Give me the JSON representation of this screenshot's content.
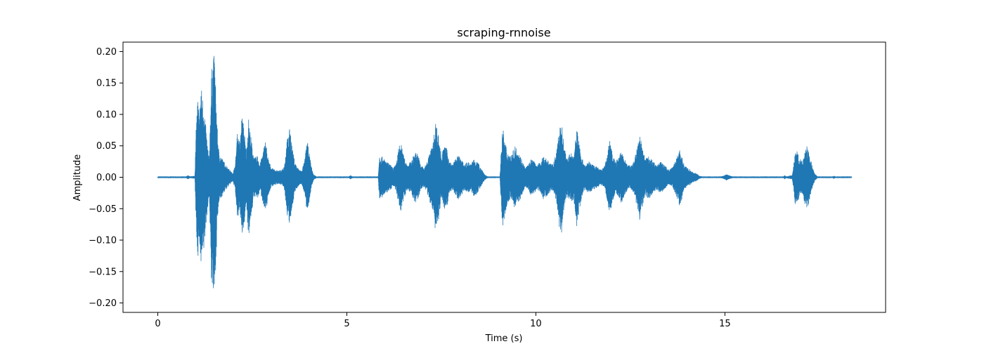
{
  "chart_data": {
    "type": "line",
    "title": "scraping-rnnoise",
    "xlabel": "Time (s)",
    "ylabel": "Amplitude",
    "xlim": [
      -0.92,
      19.25
    ],
    "ylim": [
      -0.215,
      0.215
    ],
    "xticks": [
      0,
      5,
      10,
      15
    ],
    "xtick_labels": [
      "0",
      "5",
      "10",
      "15"
    ],
    "yticks": [
      -0.2,
      -0.15,
      -0.1,
      -0.05,
      0.0,
      0.05,
      0.1,
      0.15,
      0.2
    ],
    "ytick_labels": [
      "−0.20",
      "−0.15",
      "−0.10",
      "−0.05",
      "0.00",
      "0.05",
      "0.10",
      "0.15",
      "0.20"
    ],
    "grid": false,
    "duration": 18.35,
    "series": [
      {
        "color": "#1f77b4",
        "envelope": [
          [
            0.0,
            0.001
          ],
          [
            0.75,
            0.001
          ],
          [
            0.8,
            0.003
          ],
          [
            0.85,
            0.001
          ],
          [
            0.98,
            0.002
          ],
          [
            1.02,
            0.09
          ],
          [
            1.06,
            0.13
          ],
          [
            1.1,
            0.095
          ],
          [
            1.14,
            0.15
          ],
          [
            1.18,
            0.13
          ],
          [
            1.22,
            0.12
          ],
          [
            1.27,
            0.08
          ],
          [
            1.32,
            0.05
          ],
          [
            1.36,
            0.03
          ],
          [
            1.42,
            0.17
          ],
          [
            1.46,
            0.19
          ],
          [
            1.5,
            0.196
          ],
          [
            1.54,
            0.13
          ],
          [
            1.58,
            0.07
          ],
          [
            1.62,
            0.04
          ],
          [
            1.7,
            0.03
          ],
          [
            1.8,
            0.02
          ],
          [
            1.9,
            0.012
          ],
          [
            1.98,
            0.006
          ],
          [
            2.05,
            0.02
          ],
          [
            2.1,
            0.07
          ],
          [
            2.18,
            0.055
          ],
          [
            2.22,
            0.1
          ],
          [
            2.28,
            0.08
          ],
          [
            2.34,
            0.04
          ],
          [
            2.4,
            0.095
          ],
          [
            2.45,
            0.07
          ],
          [
            2.55,
            0.03
          ],
          [
            2.65,
            0.035
          ],
          [
            2.7,
            0.02
          ],
          [
            2.78,
            0.04
          ],
          [
            2.85,
            0.06
          ],
          [
            2.92,
            0.03
          ],
          [
            3.0,
            0.015
          ],
          [
            3.1,
            0.012
          ],
          [
            3.2,
            0.01
          ],
          [
            3.28,
            0.012
          ],
          [
            3.35,
            0.02
          ],
          [
            3.42,
            0.06
          ],
          [
            3.5,
            0.08
          ],
          [
            3.55,
            0.05
          ],
          [
            3.62,
            0.025
          ],
          [
            3.7,
            0.015
          ],
          [
            3.8,
            0.01
          ],
          [
            3.88,
            0.025
          ],
          [
            3.95,
            0.06
          ],
          [
            4.0,
            0.04
          ],
          [
            4.06,
            0.018
          ],
          [
            4.12,
            0.004
          ],
          [
            4.2,
            0.001
          ],
          [
            5.05,
            0.001
          ],
          [
            5.1,
            0.003
          ],
          [
            5.15,
            0.001
          ],
          [
            5.83,
            0.001
          ],
          [
            5.86,
            0.035
          ],
          [
            5.95,
            0.032
          ],
          [
            6.05,
            0.025
          ],
          [
            6.15,
            0.02
          ],
          [
            6.22,
            0.015
          ],
          [
            6.3,
            0.02
          ],
          [
            6.38,
            0.05
          ],
          [
            6.43,
            0.055
          ],
          [
            6.5,
            0.035
          ],
          [
            6.6,
            0.02
          ],
          [
            6.7,
            0.025
          ],
          [
            6.8,
            0.04
          ],
          [
            6.88,
            0.038
          ],
          [
            6.95,
            0.02
          ],
          [
            7.05,
            0.015
          ],
          [
            7.12,
            0.025
          ],
          [
            7.2,
            0.04
          ],
          [
            7.28,
            0.055
          ],
          [
            7.35,
            0.09
          ],
          [
            7.42,
            0.07
          ],
          [
            7.5,
            0.035
          ],
          [
            7.58,
            0.05
          ],
          [
            7.65,
            0.045
          ],
          [
            7.72,
            0.025
          ],
          [
            7.8,
            0.02
          ],
          [
            7.88,
            0.03
          ],
          [
            7.95,
            0.035
          ],
          [
            8.02,
            0.03
          ],
          [
            8.1,
            0.02
          ],
          [
            8.2,
            0.025
          ],
          [
            8.28,
            0.02
          ],
          [
            8.35,
            0.03
          ],
          [
            8.42,
            0.028
          ],
          [
            8.5,
            0.02
          ],
          [
            8.58,
            0.012
          ],
          [
            8.65,
            0.004
          ],
          [
            8.72,
            0.001
          ],
          [
            9.05,
            0.001
          ],
          [
            9.08,
            0.04
          ],
          [
            9.12,
            0.08
          ],
          [
            9.18,
            0.06
          ],
          [
            9.25,
            0.04
          ],
          [
            9.35,
            0.035
          ],
          [
            9.45,
            0.05
          ],
          [
            9.55,
            0.04
          ],
          [
            9.65,
            0.025
          ],
          [
            9.72,
            0.015
          ],
          [
            9.8,
            0.02
          ],
          [
            9.88,
            0.03
          ],
          [
            9.95,
            0.025
          ],
          [
            10.05,
            0.02
          ],
          [
            10.12,
            0.025
          ],
          [
            10.2,
            0.035
          ],
          [
            10.28,
            0.03
          ],
          [
            10.35,
            0.025
          ],
          [
            10.45,
            0.02
          ],
          [
            10.55,
            0.04
          ],
          [
            10.62,
            0.08
          ],
          [
            10.68,
            0.09
          ],
          [
            10.74,
            0.05
          ],
          [
            10.82,
            0.03
          ],
          [
            10.92,
            0.04
          ],
          [
            11.0,
            0.035
          ],
          [
            11.08,
            0.08
          ],
          [
            11.14,
            0.06
          ],
          [
            11.22,
            0.03
          ],
          [
            11.3,
            0.02
          ],
          [
            11.4,
            0.025
          ],
          [
            11.5,
            0.02
          ],
          [
            11.6,
            0.018
          ],
          [
            11.7,
            0.012
          ],
          [
            11.8,
            0.015
          ],
          [
            11.88,
            0.035
          ],
          [
            11.95,
            0.06
          ],
          [
            12.02,
            0.04
          ],
          [
            12.1,
            0.025
          ],
          [
            12.18,
            0.03
          ],
          [
            12.26,
            0.042
          ],
          [
            12.34,
            0.03
          ],
          [
            12.42,
            0.02
          ],
          [
            12.5,
            0.018
          ],
          [
            12.6,
            0.025
          ],
          [
            12.68,
            0.05
          ],
          [
            12.75,
            0.07
          ],
          [
            12.82,
            0.045
          ],
          [
            12.9,
            0.03
          ],
          [
            13.0,
            0.035
          ],
          [
            13.1,
            0.025
          ],
          [
            13.2,
            0.02
          ],
          [
            13.3,
            0.025
          ],
          [
            13.4,
            0.02
          ],
          [
            13.5,
            0.012
          ],
          [
            13.6,
            0.015
          ],
          [
            13.72,
            0.03
          ],
          [
            13.8,
            0.045
          ],
          [
            13.86,
            0.035
          ],
          [
            13.92,
            0.02
          ],
          [
            14.0,
            0.015
          ],
          [
            14.08,
            0.012
          ],
          [
            14.15,
            0.008
          ],
          [
            14.25,
            0.006
          ],
          [
            14.32,
            0.002
          ],
          [
            14.4,
            0.001
          ],
          [
            14.9,
            0.001
          ],
          [
            15.0,
            0.003
          ],
          [
            15.04,
            0.005
          ],
          [
            15.1,
            0.003
          ],
          [
            15.2,
            0.001
          ],
          [
            16.55,
            0.001
          ],
          [
            16.58,
            0.003
          ],
          [
            16.62,
            0.001
          ],
          [
            16.78,
            0.003
          ],
          [
            16.82,
            0.02
          ],
          [
            16.86,
            0.045
          ],
          [
            16.92,
            0.04
          ],
          [
            16.98,
            0.03
          ],
          [
            17.05,
            0.025
          ],
          [
            17.1,
            0.04
          ],
          [
            17.16,
            0.05
          ],
          [
            17.2,
            0.045
          ],
          [
            17.26,
            0.03
          ],
          [
            17.32,
            0.015
          ],
          [
            17.38,
            0.005
          ],
          [
            17.45,
            0.001
          ],
          [
            17.85,
            0.001
          ],
          [
            17.88,
            0.002
          ],
          [
            17.92,
            0.001
          ],
          [
            18.35,
            0.001
          ]
        ]
      }
    ]
  }
}
